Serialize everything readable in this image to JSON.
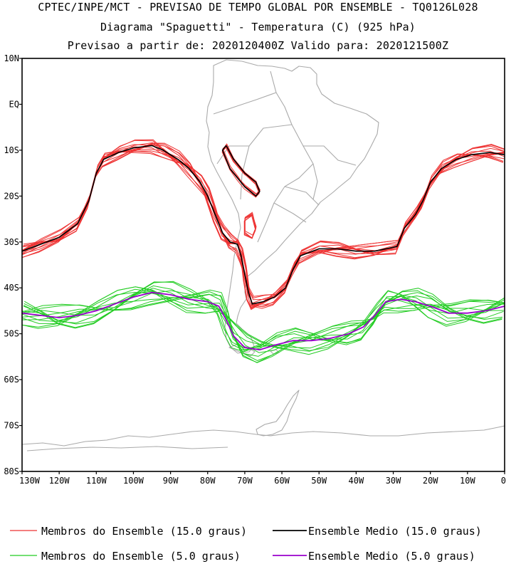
{
  "titles": {
    "line1": "CPTEC/INPE/MCT - PREVISAO DE TEMPO GLOBAL POR ENSEMBLE - TQ0126L028",
    "line2": "Diagrama \"Spaguetti\" - Temperatura (C) (925 hPa)",
    "line3": "Previsao a partir de: 2020120400Z  Valido para: 2020121500Z"
  },
  "map": {
    "lat_labels": [
      "10N",
      "EQ",
      "10S",
      "20S",
      "30S",
      "40S",
      "50S",
      "60S",
      "70S",
      "80S"
    ],
    "lon_labels": [
      "130W",
      "120W",
      "110W",
      "100W",
      "90W",
      "80W",
      "70W",
      "60W",
      "50W",
      "40W",
      "30W",
      "20W",
      "10W",
      "0"
    ],
    "lat_values": [
      10,
      0,
      -10,
      -20,
      -30,
      -40,
      -50,
      -60,
      -70,
      -80
    ],
    "lon_values": [
      -130,
      -120,
      -110,
      -100,
      -90,
      -80,
      -70,
      -60,
      -50,
      -40,
      -30,
      -20,
      -10,
      0
    ],
    "extent": {
      "lon_min": -130,
      "lon_max": 0,
      "lat_min": -80,
      "lat_max": 10
    }
  },
  "legend": {
    "members15": "Membros do Ensemble (15.0 graus)",
    "mean15": "Ensemble Medio (15.0 graus)",
    "members5": "Membros do Ensemble (5.0 graus)",
    "mean5": "Ensemble Medio (5.0 graus)"
  },
  "colors": {
    "members15": "#ee3333",
    "mean15": "#000000",
    "members5": "#22cc22",
    "mean5": "#9900cc",
    "land": "#aaaaaa"
  },
  "isotherms": {
    "t15_mean": [
      [
        -130,
        -32
      ],
      [
        -125,
        -30.5
      ],
      [
        -120,
        -29
      ],
      [
        -115,
        -26
      ],
      [
        -112,
        -21
      ],
      [
        -110,
        -15
      ],
      [
        -108,
        -12
      ],
      [
        -104,
        -10.5
      ],
      [
        -100,
        -9.5
      ],
      [
        -95,
        -9
      ],
      [
        -92,
        -10
      ],
      [
        -88,
        -12
      ],
      [
        -85,
        -14
      ],
      [
        -82,
        -17
      ],
      [
        -80,
        -20
      ],
      [
        -78,
        -24
      ],
      [
        -76,
        -28
      ],
      [
        -74,
        -30
      ],
      [
        -72,
        -30.5
      ],
      [
        -71,
        -33
      ],
      [
        -70,
        -37
      ],
      [
        -69,
        -41
      ],
      [
        -68,
        -43.5
      ],
      [
        -65,
        -43
      ],
      [
        -62,
        -42
      ],
      [
        -59,
        -40
      ],
      [
        -57,
        -36
      ],
      [
        -55,
        -33
      ],
      [
        -50,
        -31.5
      ],
      [
        -45,
        -31.5
      ],
      [
        -40,
        -32
      ],
      [
        -35,
        -32
      ],
      [
        -29,
        -31
      ],
      [
        -27,
        -27
      ],
      [
        -24,
        -24
      ],
      [
        -22,
        -21
      ],
      [
        -20,
        -17
      ],
      [
        -17,
        -14
      ],
      [
        -13,
        -12
      ],
      [
        -9,
        -11
      ],
      [
        -4,
        -10.5
      ],
      [
        0,
        -11
      ]
    ],
    "t5_mean": [
      [
        -130,
        -45.5
      ],
      [
        -125,
        -46
      ],
      [
        -120,
        -46.5
      ],
      [
        -115,
        -46
      ],
      [
        -110,
        -45
      ],
      [
        -105,
        -43.5
      ],
      [
        -100,
        -42
      ],
      [
        -95,
        -41
      ],
      [
        -90,
        -41.5
      ],
      [
        -85,
        -42.5
      ],
      [
        -80,
        -43
      ],
      [
        -77,
        -44
      ],
      [
        -75,
        -47
      ],
      [
        -73,
        -50.5
      ],
      [
        -70,
        -53
      ],
      [
        -66,
        -53.5
      ],
      [
        -62,
        -52.5
      ],
      [
        -57,
        -51.5
      ],
      [
        -52,
        -51.5
      ],
      [
        -47,
        -51
      ],
      [
        -42,
        -50
      ],
      [
        -38,
        -48.5
      ],
      [
        -35,
        -46
      ],
      [
        -32,
        -43
      ],
      [
        -28,
        -42.5
      ],
      [
        -24,
        -43
      ],
      [
        -20,
        -44
      ],
      [
        -15,
        -45.5
      ],
      [
        -10,
        -45.5
      ],
      [
        -5,
        -45
      ],
      [
        0,
        -44
      ]
    ]
  }
}
